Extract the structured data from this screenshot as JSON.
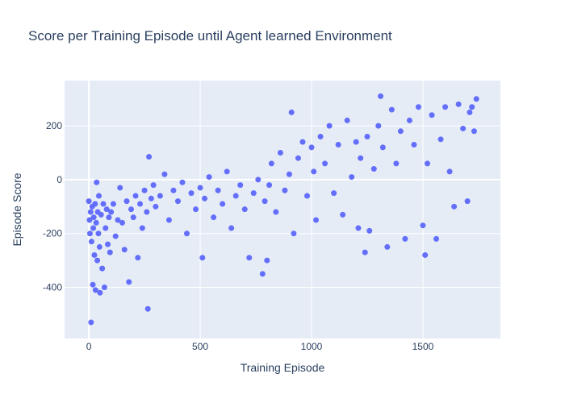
{
  "chart_data": {
    "type": "scatter",
    "title": "Score per Training Episode until Agent learned Environment",
    "x_label": "Training Episode",
    "y_label": "Episode Score",
    "color": "#636efa",
    "grid": true,
    "xlim": [
      -109,
      1848
    ],
    "ylim": [
      -590,
      368
    ],
    "xticks": [
      0,
      500,
      1000,
      1500
    ],
    "yticks": [
      -400,
      -200,
      0,
      200
    ],
    "x": [
      0,
      3,
      5,
      8,
      10,
      12,
      15,
      18,
      20,
      22,
      25,
      28,
      30,
      33,
      35,
      38,
      40,
      43,
      45,
      48,
      50,
      55,
      60,
      65,
      70,
      75,
      80,
      85,
      90,
      95,
      100,
      110,
      120,
      130,
      140,
      150,
      160,
      170,
      180,
      190,
      200,
      210,
      220,
      230,
      240,
      250,
      260,
      265,
      270,
      280,
      290,
      300,
      320,
      340,
      360,
      380,
      400,
      420,
      440,
      460,
      480,
      500,
      510,
      520,
      540,
      560,
      580,
      600,
      620,
      640,
      660,
      680,
      700,
      720,
      740,
      760,
      780,
      790,
      800,
      810,
      820,
      840,
      860,
      880,
      900,
      910,
      920,
      940,
      960,
      980,
      1000,
      1010,
      1020,
      1040,
      1060,
      1080,
      1100,
      1120,
      1140,
      1160,
      1180,
      1200,
      1210,
      1220,
      1240,
      1250,
      1260,
      1280,
      1300,
      1310,
      1320,
      1340,
      1360,
      1380,
      1400,
      1420,
      1440,
      1460,
      1480,
      1500,
      1510,
      1520,
      1540,
      1560,
      1580,
      1600,
      1620,
      1640,
      1660,
      1680,
      1700,
      1710,
      1720,
      1730,
      1740
    ],
    "y": [
      -80,
      -150,
      -200,
      -120,
      -530,
      -230,
      -100,
      -390,
      -180,
      -140,
      -280,
      -90,
      -410,
      -160,
      -10,
      -300,
      -120,
      -200,
      -60,
      -250,
      -420,
      -130,
      -330,
      -90,
      -400,
      -180,
      -110,
      -240,
      -140,
      -270,
      -120,
      -90,
      -210,
      -150,
      -30,
      -160,
      -260,
      -80,
      -380,
      -110,
      -140,
      -60,
      -290,
      -90,
      -180,
      -40,
      -120,
      -480,
      85,
      -70,
      -20,
      -100,
      -60,
      20,
      -150,
      -40,
      -80,
      -10,
      -200,
      -50,
      -110,
      -30,
      -290,
      -70,
      10,
      -140,
      -40,
      -90,
      30,
      -180,
      -60,
      -20,
      -110,
      -290,
      -50,
      0,
      -350,
      -80,
      -300,
      -20,
      60,
      -120,
      100,
      -40,
      20,
      250,
      -200,
      80,
      140,
      -60,
      120,
      30,
      -150,
      160,
      60,
      200,
      -50,
      130,
      -130,
      220,
      10,
      140,
      -180,
      80,
      -270,
      160,
      -190,
      40,
      200,
      310,
      120,
      -250,
      260,
      60,
      180,
      -220,
      220,
      130,
      270,
      -170,
      -280,
      60,
      240,
      -220,
      150,
      270,
      30,
      -100,
      280,
      190,
      -80,
      250,
      270,
      180,
      300
    ]
  }
}
